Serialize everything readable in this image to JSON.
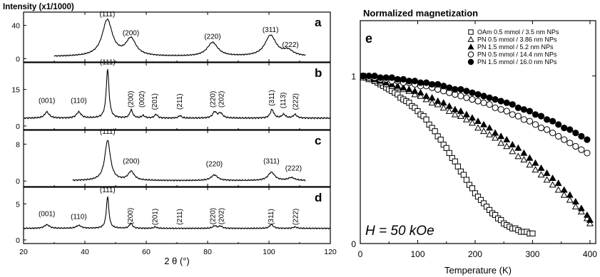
{
  "chart_data": [
    {
      "type": "line",
      "ylabel": "Intensity (x1/1000)",
      "xlabel": "2 θ (°)",
      "xlim": [
        20,
        120
      ],
      "x_ticks": [
        20,
        40,
        60,
        80,
        100,
        120
      ],
      "panels": [
        {
          "label": "a",
          "ylim": [
            -4,
            56
          ],
          "y_ticks": [
            0,
            40
          ],
          "x_range": [
            30,
            112
          ],
          "baseline": 2.5,
          "peaks": [
            {
              "two_theta": 47.3,
              "height": 43.5,
              "width": 2.0
            },
            {
              "two_theta": 55.0,
              "height": 20.5,
              "width": 2.0
            },
            {
              "two_theta": 81.6,
              "height": 16.5,
              "width": 2.1
            },
            {
              "two_theta": 100.5,
              "height": 25.0,
              "width": 2.2
            },
            {
              "two_theta": 106.2,
              "height": 6.5,
              "width": 2.0
            }
          ],
          "annotations": [
            {
              "text": "(111)",
              "x": 47.3,
              "y": 51
            },
            {
              "text": "(200)",
              "x": 55.0,
              "y": 28
            },
            {
              "text": "(220)",
              "x": 81.6,
              "y": 24
            },
            {
              "text": "(311)",
              "x": 100.5,
              "y": 32
            },
            {
              "text": "(222)",
              "x": 107.0,
              "y": 14
            }
          ]
        },
        {
          "label": "b",
          "ylim": [
            -1.5,
            26
          ],
          "y_ticks": [
            0,
            15
          ],
          "x_range": [
            20,
            120
          ],
          "baseline": 3.2,
          "peaks": [
            {
              "two_theta": 27.6,
              "height": 2.5,
              "width": 0.9
            },
            {
              "two_theta": 38.0,
              "height": 2.5,
              "width": 0.9
            },
            {
              "two_theta": 47.4,
              "height": 20.0,
              "width": 0.55
            },
            {
              "two_theta": 55.1,
              "height": 3.3,
              "width": 0.6
            },
            {
              "two_theta": 59.0,
              "height": 1.0,
              "width": 0.6
            },
            {
              "two_theta": 63.2,
              "height": 1.5,
              "width": 0.6
            },
            {
              "two_theta": 71.0,
              "height": 1.0,
              "width": 0.6
            },
            {
              "two_theta": 82.3,
              "height": 2.5,
              "width": 0.8
            },
            {
              "two_theta": 84.2,
              "height": 2.0,
              "width": 0.8
            },
            {
              "two_theta": 101.0,
              "height": 3.5,
              "width": 0.7
            },
            {
              "two_theta": 104.8,
              "height": 1.5,
              "width": 0.7
            },
            {
              "two_theta": 108.5,
              "height": 1.5,
              "width": 0.7
            }
          ],
          "annotations": [
            {
              "text": "(001)",
              "x": 27.6,
              "y": 9.5,
              "rotate": false
            },
            {
              "text": "(110)",
              "x": 38.0,
              "y": 9.5,
              "rotate": false
            },
            {
              "text": "(111)",
              "x": 47.4,
              "y": 25.2,
              "rotate": false
            },
            {
              "text": "(200)",
              "x": 55.1,
              "y": 11,
              "rotate": true
            },
            {
              "text": "(002)",
              "x": 58.7,
              "y": 11,
              "rotate": true
            },
            {
              "text": "(201)",
              "x": 62.9,
              "y": 10,
              "rotate": true
            },
            {
              "text": "(211)",
              "x": 71.0,
              "y": 10,
              "rotate": true
            },
            {
              "text": "(220)",
              "x": 81.9,
              "y": 11,
              "rotate": true
            },
            {
              "text": "(202)",
              "x": 84.6,
              "y": 11,
              "rotate": true
            },
            {
              "text": "(311)",
              "x": 101.0,
              "y": 11.5,
              "rotate": true
            },
            {
              "text": "(113)",
              "x": 104.8,
              "y": 10.5,
              "rotate": true
            },
            {
              "text": "(222)",
              "x": 108.8,
              "y": 10,
              "rotate": true
            }
          ]
        },
        {
          "label": "c",
          "ylim": [
            -1.2,
            11
          ],
          "y_ticks": [
            0,
            8
          ],
          "x_range": [
            36,
            112
          ],
          "baseline": 0.1,
          "peaks": [
            {
              "two_theta": 47.4,
              "height": 8.7,
              "width": 1.1
            },
            {
              "two_theta": 55.1,
              "height": 1.9,
              "width": 1.2
            },
            {
              "two_theta": 82.2,
              "height": 1.2,
              "width": 1.3
            },
            {
              "two_theta": 100.8,
              "height": 1.8,
              "width": 1.3
            },
            {
              "two_theta": 107.3,
              "height": 0.6,
              "width": 1.3
            }
          ],
          "annotations": [
            {
              "text": "(111)",
              "x": 47.4,
              "y": 10.2
            },
            {
              "text": "(200)",
              "x": 55.1,
              "y": 3.8
            },
            {
              "text": "(220)",
              "x": 82.2,
              "y": 3.2
            },
            {
              "text": "(311)",
              "x": 100.8,
              "y": 3.8
            },
            {
              "text": "(222)",
              "x": 108.0,
              "y": 2.3
            }
          ]
        },
        {
          "label": "d",
          "ylim": [
            -0.5,
            7.3
          ],
          "y_ticks": [
            0,
            5
          ],
          "x_range": [
            20,
            120
          ],
          "baseline": 1.6,
          "peaks": [
            {
              "two_theta": 27.6,
              "height": 0.5,
              "width": 1.0
            },
            {
              "two_theta": 38.0,
              "height": 0.4,
              "width": 1.0
            },
            {
              "two_theta": 47.4,
              "height": 4.4,
              "width": 0.5
            },
            {
              "two_theta": 55.0,
              "height": 0.7,
              "width": 0.6
            },
            {
              "two_theta": 63.0,
              "height": 0.2,
              "width": 0.6
            },
            {
              "two_theta": 82.3,
              "height": 0.35,
              "width": 0.7
            },
            {
              "two_theta": 84.2,
              "height": 0.3,
              "width": 0.7
            },
            {
              "two_theta": 100.8,
              "height": 0.55,
              "width": 0.7
            },
            {
              "two_theta": 108.5,
              "height": 0.2,
              "width": 0.7
            }
          ],
          "annotations": [
            {
              "text": "(001)",
              "x": 27.6,
              "y": 3.3,
              "rotate": false
            },
            {
              "text": "(110)",
              "x": 38.0,
              "y": 2.9,
              "rotate": false
            },
            {
              "text": "(111)",
              "x": 47.4,
              "y": 6.6,
              "rotate": false
            },
            {
              "text": "(200)",
              "x": 55.0,
              "y": 3.3,
              "rotate": true
            },
            {
              "text": "(201)",
              "x": 63.0,
              "y": 3.2,
              "rotate": true
            },
            {
              "text": "(211)",
              "x": 71.0,
              "y": 3.2,
              "rotate": true
            },
            {
              "text": "(220)",
              "x": 81.9,
              "y": 3.3,
              "rotate": true
            },
            {
              "text": "(202)",
              "x": 84.6,
              "y": 3.3,
              "rotate": true
            },
            {
              "text": "(311)",
              "x": 100.8,
              "y": 3.2,
              "rotate": true
            },
            {
              "text": "(222)",
              "x": 108.8,
              "y": 3.2,
              "rotate": true
            }
          ]
        }
      ]
    },
    {
      "type": "scatter",
      "title": "Normalized magnetization",
      "panel_label": "e",
      "annotation": "H = 50 kOe",
      "xlabel": "Temperature (K)",
      "xlim": [
        0,
        410
      ],
      "ylim": [
        0,
        1.33
      ],
      "x_ticks": [
        0,
        100,
        200,
        300,
        400
      ],
      "y_ticks": [
        0,
        1
      ],
      "legend_position": "top-right",
      "series": [
        {
          "name": "OAm 0.5 mmol / 3.5 nm NPs",
          "marker": "open-square",
          "x": [
            5,
            10,
            15,
            20,
            25,
            30,
            35,
            40,
            45,
            50,
            55,
            60,
            65,
            70,
            75,
            80,
            85,
            90,
            95,
            100,
            105,
            110,
            115,
            120,
            125,
            130,
            135,
            140,
            145,
            150,
            155,
            160,
            165,
            170,
            175,
            180,
            185,
            190,
            195,
            200,
            205,
            210,
            215,
            220,
            225,
            230,
            235,
            240,
            245,
            250,
            255,
            260,
            265,
            270,
            275,
            280,
            285,
            290,
            295,
            300
          ],
          "y": [
            1.0,
            0.99,
            0.99,
            0.98,
            0.97,
            0.96,
            0.95,
            0.94,
            0.93,
            0.92,
            0.91,
            0.9,
            0.89,
            0.87,
            0.86,
            0.85,
            0.84,
            0.82,
            0.81,
            0.79,
            0.77,
            0.76,
            0.74,
            0.71,
            0.69,
            0.67,
            0.64,
            0.62,
            0.59,
            0.57,
            0.54,
            0.51,
            0.49,
            0.46,
            0.43,
            0.41,
            0.38,
            0.35,
            0.33,
            0.3,
            0.28,
            0.26,
            0.24,
            0.22,
            0.2,
            0.18,
            0.17,
            0.15,
            0.14,
            0.12,
            0.11,
            0.1,
            0.09,
            0.09,
            0.08,
            0.07,
            0.07,
            0.07,
            0.06,
            0.06
          ]
        },
        {
          "name": "PN 0.5 mmol / 3.86 nm NPs",
          "marker": "open-triangle",
          "x": [
            5,
            15,
            25,
            35,
            45,
            55,
            65,
            75,
            85,
            95,
            105,
            115,
            125,
            135,
            145,
            155,
            165,
            175,
            185,
            195,
            205,
            215,
            225,
            235,
            245,
            255,
            265,
            275,
            285,
            295,
            305,
            315,
            325,
            335,
            345,
            355,
            365,
            375,
            385,
            395,
            400
          ],
          "y": [
            0.99,
            0.98,
            0.97,
            0.96,
            0.95,
            0.94,
            0.93,
            0.92,
            0.91,
            0.89,
            0.88,
            0.86,
            0.84,
            0.83,
            0.81,
            0.79,
            0.77,
            0.76,
            0.74,
            0.72,
            0.69,
            0.67,
            0.65,
            0.63,
            0.6,
            0.58,
            0.55,
            0.52,
            0.5,
            0.47,
            0.44,
            0.41,
            0.38,
            0.35,
            0.32,
            0.29,
            0.26,
            0.22,
            0.19,
            0.15,
            0.12
          ]
        },
        {
          "name": "PN 1.5 mmol / 5.2 nm NPs",
          "marker": "filled-triangle",
          "x": [
            5,
            15,
            25,
            35,
            45,
            55,
            65,
            75,
            85,
            95,
            105,
            115,
            125,
            135,
            145,
            155,
            165,
            175,
            185,
            195,
            205,
            215,
            225,
            235,
            245,
            255,
            265,
            275,
            285,
            295,
            305,
            315,
            325,
            335,
            345,
            355,
            365,
            375,
            385,
            395,
            400
          ],
          "y": [
            1.0,
            0.99,
            0.98,
            0.97,
            0.96,
            0.95,
            0.94,
            0.93,
            0.92,
            0.91,
            0.9,
            0.88,
            0.87,
            0.85,
            0.84,
            0.82,
            0.8,
            0.79,
            0.77,
            0.75,
            0.73,
            0.71,
            0.69,
            0.66,
            0.64,
            0.62,
            0.59,
            0.57,
            0.54,
            0.51,
            0.48,
            0.45,
            0.42,
            0.39,
            0.36,
            0.32,
            0.29,
            0.25,
            0.21,
            0.17,
            0.14
          ]
        },
        {
          "name": "PN 0.5 mmol / 14.4 nm NPs",
          "marker": "open-circle",
          "x": [
            5,
            15,
            25,
            35,
            45,
            55,
            65,
            75,
            85,
            95,
            105,
            115,
            125,
            135,
            145,
            155,
            165,
            175,
            185,
            195,
            205,
            215,
            225,
            235,
            245,
            255,
            265,
            275,
            285,
            295,
            305,
            315,
            325,
            335,
            345,
            355,
            365,
            375,
            385,
            395
          ],
          "y": [
            1.0,
            0.99,
            0.99,
            0.98,
            0.98,
            0.97,
            0.97,
            0.96,
            0.96,
            0.95,
            0.94,
            0.94,
            0.93,
            0.92,
            0.91,
            0.9,
            0.89,
            0.88,
            0.87,
            0.86,
            0.85,
            0.84,
            0.83,
            0.81,
            0.8,
            0.79,
            0.77,
            0.76,
            0.74,
            0.73,
            0.71,
            0.69,
            0.68,
            0.66,
            0.64,
            0.62,
            0.6,
            0.58,
            0.56,
            0.54
          ]
        },
        {
          "name": "PN 1.5 mmol / 16.0 nm NPs",
          "marker": "filled-circle",
          "x": [
            5,
            15,
            25,
            35,
            45,
            55,
            65,
            75,
            85,
            95,
            105,
            115,
            125,
            135,
            145,
            155,
            165,
            175,
            185,
            195,
            205,
            215,
            225,
            235,
            245,
            255,
            265,
            275,
            285,
            295,
            305,
            315,
            325,
            335,
            345,
            355,
            365,
            375,
            385,
            395
          ],
          "y": [
            1.0,
            1.0,
            1.0,
            0.99,
            0.99,
            0.99,
            0.98,
            0.98,
            0.97,
            0.97,
            0.96,
            0.96,
            0.95,
            0.95,
            0.94,
            0.93,
            0.92,
            0.92,
            0.91,
            0.9,
            0.89,
            0.88,
            0.87,
            0.86,
            0.85,
            0.84,
            0.83,
            0.81,
            0.8,
            0.79,
            0.77,
            0.76,
            0.74,
            0.73,
            0.71,
            0.69,
            0.68,
            0.66,
            0.64,
            0.62
          ]
        }
      ]
    }
  ]
}
